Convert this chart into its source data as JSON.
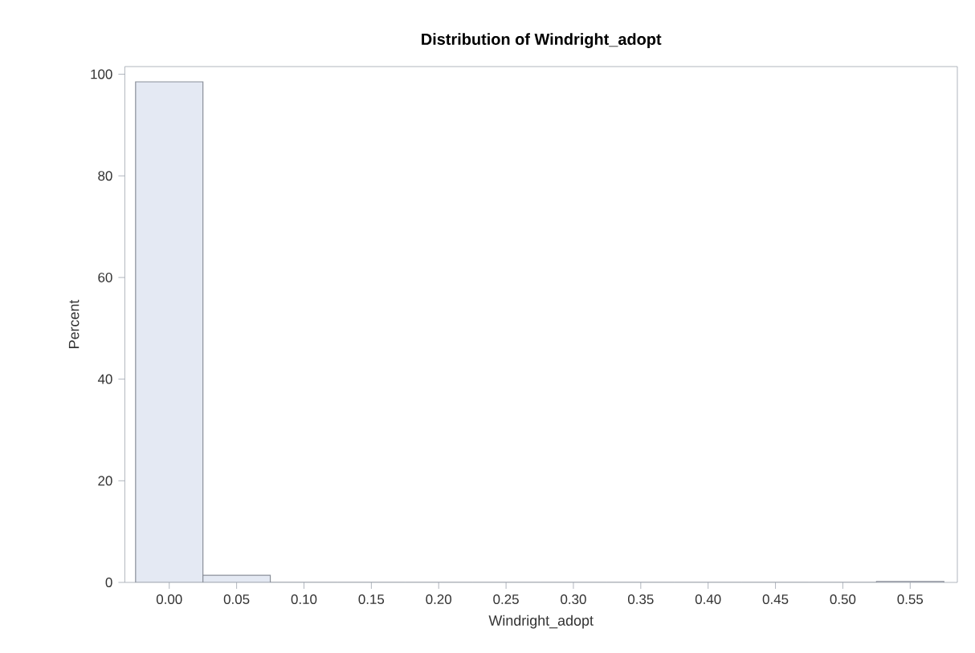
{
  "chart_data": {
    "type": "histogram",
    "title": "Distribution of Windright_adopt",
    "xlabel": "Windright_adopt",
    "ylabel": "Percent",
    "bins": [
      -0.025,
      0.025,
      0.075,
      0.125,
      0.175,
      0.225,
      0.275,
      0.325,
      0.375,
      0.425,
      0.475,
      0.525,
      0.575
    ],
    "values": [
      98.5,
      1.4,
      0,
      0,
      0,
      0,
      0,
      0,
      0,
      0,
      0,
      0.2
    ],
    "color": "#e4e9f3",
    "xlim": [
      -0.033,
      0.585
    ],
    "ylim": [
      0,
      101.5
    ],
    "xticks": [
      {
        "value": 0,
        "label": "0.00"
      },
      {
        "value": 0.05,
        "label": "0.05"
      },
      {
        "value": 0.1,
        "label": "0.10"
      },
      {
        "value": 0.15,
        "label": "0.15"
      },
      {
        "value": 0.2,
        "label": "0.20"
      },
      {
        "value": 0.25,
        "label": "0.25"
      },
      {
        "value": 0.3,
        "label": "0.30"
      },
      {
        "value": 0.35,
        "label": "0.35"
      },
      {
        "value": 0.4,
        "label": "0.40"
      },
      {
        "value": 0.45,
        "label": "0.45"
      },
      {
        "value": 0.5,
        "label": "0.50"
      },
      {
        "value": 0.55,
        "label": "0.55"
      }
    ],
    "yticks": [
      0,
      20,
      40,
      60,
      80,
      100
    ],
    "grid": false
  }
}
